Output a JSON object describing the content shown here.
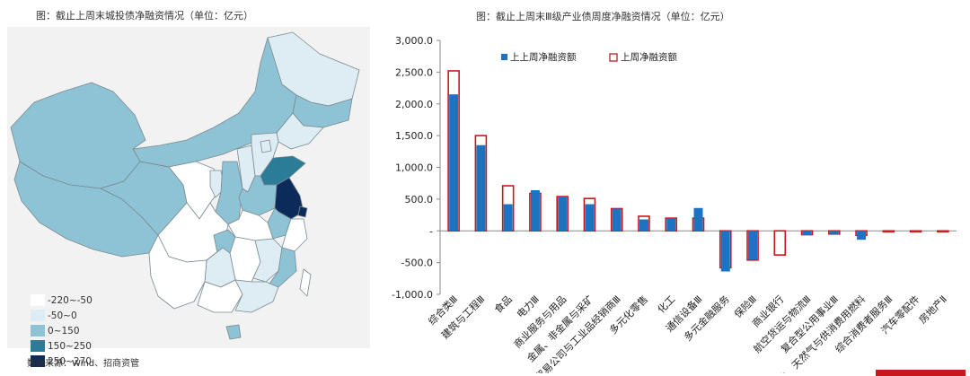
{
  "map": {
    "title": "图：截止上周末城投债净融资情况（单位：亿元）",
    "legend": [
      {
        "label": "-220~-50",
        "color": "#ffffff"
      },
      {
        "label": "-50~0",
        "color": "#deedf3"
      },
      {
        "label": "0~150",
        "color": "#8ec3d6"
      },
      {
        "label": "150~250",
        "color": "#2a7c97"
      },
      {
        "label": "250~270",
        "color": "#0c2a5a"
      }
    ],
    "source": "数据来源：Wind、招商资管"
  },
  "chart": {
    "title": "图：截止上周末Ⅲ级产业债周度净融资情况（单位：亿元）"
  },
  "chart_data": {
    "type": "bar",
    "title": "图：截止上周末Ⅲ级产业债周度净融资情况（单位：亿元）",
    "ylim": [
      -1000,
      3000
    ],
    "yticks": [
      "3,000.0",
      "2,500.0",
      "2,000.0",
      "1,500.0",
      "1,000.0",
      "500.0",
      "-",
      "-500.0",
      "-1,000.0"
    ],
    "categories": [
      "综合类Ⅲ",
      "建筑与工程Ⅲ",
      "食品",
      "电力Ⅲ",
      "商业服务与用品",
      "金属、非金属与采矿",
      "贸易公司与工业品经销商Ⅲ",
      "多元化零售",
      "化工",
      "通信设备Ⅲ",
      "多元金融服务",
      "保险Ⅲ",
      "商业银行",
      "航空货运与物流Ⅲ",
      "复合型公用事业Ⅲ",
      "石油、天然气与供消费用燃料",
      "综合消费者服务Ⅲ",
      "汽车零配件",
      "房地产Ⅱ"
    ],
    "series": [
      {
        "name": "上上周净融资额",
        "color": "#1b73c1",
        "style": "filled",
        "values": [
          2150,
          1350,
          420,
          640,
          540,
          420,
          350,
          180,
          200,
          360,
          -640,
          -450,
          0,
          -70,
          -50,
          -140,
          -10,
          -10,
          -10
        ]
      },
      {
        "name": "上周净融资额",
        "color": "#c8181e",
        "style": "outline",
        "values": [
          2520,
          1500,
          710,
          590,
          540,
          510,
          350,
          230,
          200,
          200,
          -580,
          -460,
          -380,
          -60,
          -50,
          -70,
          -10,
          -10,
          -10
        ]
      }
    ],
    "legend_position": "top"
  }
}
